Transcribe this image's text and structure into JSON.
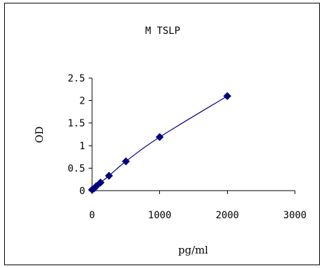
{
  "chart_data": {
    "type": "scatter",
    "title": "M TSLP",
    "xlabel": "pg/ml",
    "ylabel": "OD",
    "xlim": [
      0,
      3000
    ],
    "ylim": [
      0,
      2.5
    ],
    "x_ticks": [
      0,
      1000,
      2000,
      3000
    ],
    "x_tick_labels": [
      "0",
      "1000",
      "2000",
      "3000"
    ],
    "y_ticks": [
      0,
      0.5,
      1,
      1.5,
      2,
      2.5
    ],
    "y_tick_labels": [
      "0",
      "0.5",
      "1",
      "1.5",
      "2",
      "2.5"
    ],
    "grid": false,
    "legend": "none",
    "series": [
      {
        "x": [
          0,
          31.25,
          62.5,
          125,
          250,
          500,
          1000,
          2000
        ],
        "y": [
          0.02,
          0.05,
          0.1,
          0.18,
          0.33,
          0.65,
          1.19,
          2.1
        ],
        "marker": "diamond",
        "color": "#000080",
        "trendline": true
      }
    ]
  }
}
